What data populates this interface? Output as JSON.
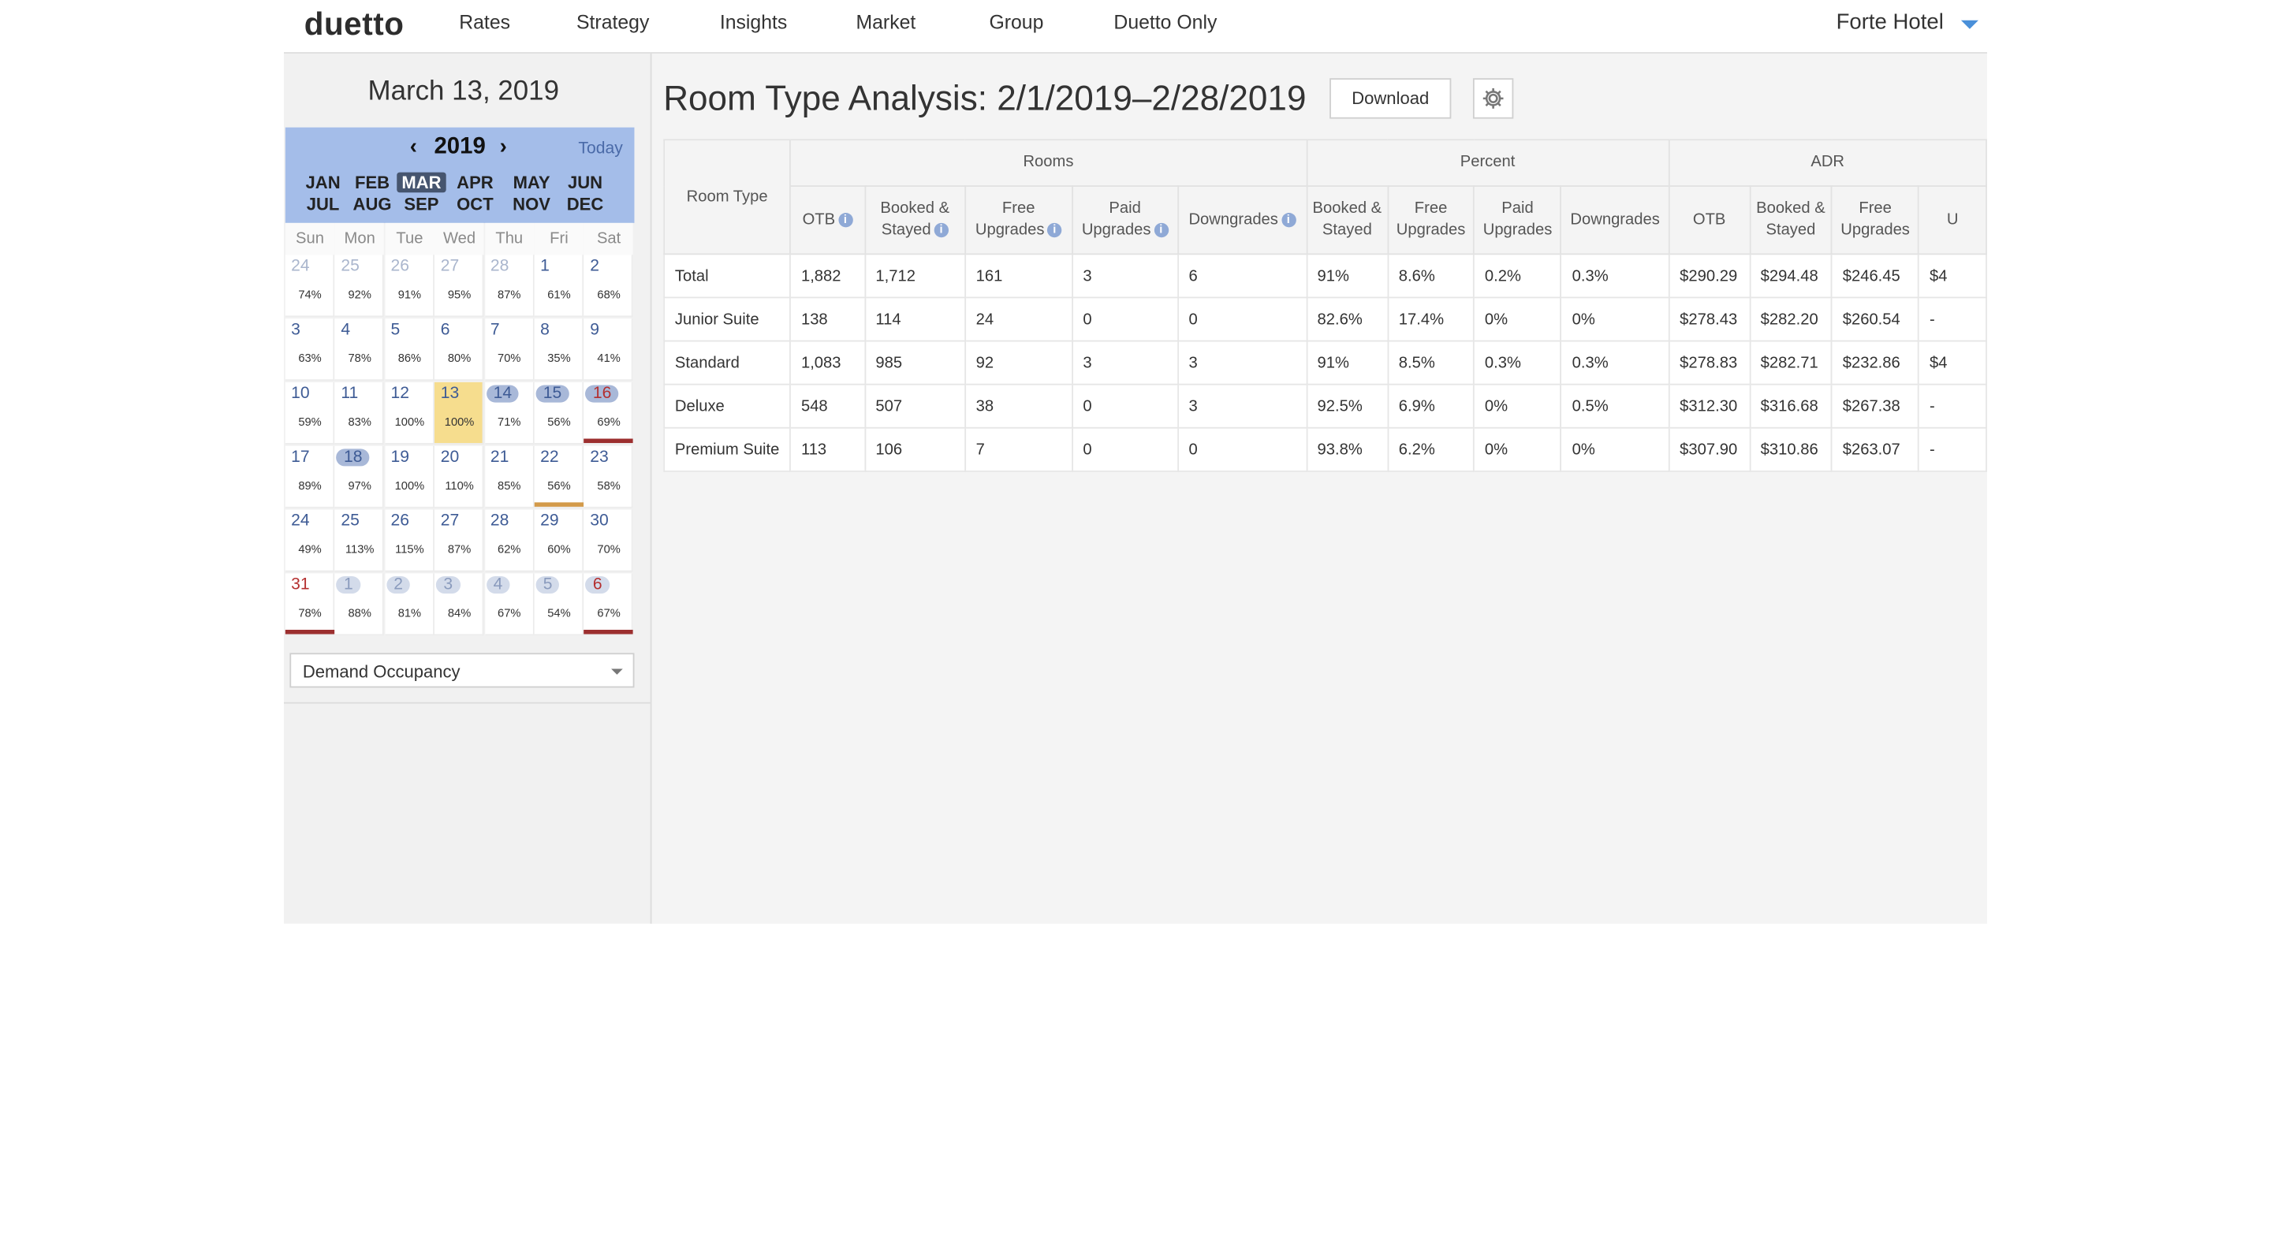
{
  "nav": {
    "logo": "duetto",
    "items": [
      "Rates",
      "Strategy",
      "Insights",
      "Market",
      "Group",
      "Duetto Only"
    ],
    "hotel": "Forte Hotel"
  },
  "sidebar": {
    "date": "March 13, 2019",
    "calendar": {
      "year": "2019",
      "prev_icon": "chevron-left-icon",
      "next_icon": "chevron-right-icon",
      "today_label": "Today",
      "months": [
        "JAN",
        "FEB",
        "MAR",
        "APR",
        "MAY",
        "JUN",
        "JUL",
        "AUG",
        "SEP",
        "OCT",
        "NOV",
        "DEC"
      ],
      "selected_month": "MAR",
      "weekdays": [
        "Sun",
        "Mon",
        "Tue",
        "Wed",
        "Thu",
        "Fri",
        "Sat"
      ],
      "weeks": [
        [
          {
            "d": "24",
            "p": "74%",
            "other": true
          },
          {
            "d": "25",
            "p": "92%",
            "other": true
          },
          {
            "d": "26",
            "p": "91%",
            "other": true
          },
          {
            "d": "27",
            "p": "95%",
            "other": true
          },
          {
            "d": "28",
            "p": "87%",
            "other": true
          },
          {
            "d": "1",
            "p": "61%"
          },
          {
            "d": "2",
            "p": "68%"
          }
        ],
        [
          {
            "d": "3",
            "p": "63%"
          },
          {
            "d": "4",
            "p": "78%"
          },
          {
            "d": "5",
            "p": "86%"
          },
          {
            "d": "6",
            "p": "80%"
          },
          {
            "d": "7",
            "p": "70%"
          },
          {
            "d": "8",
            "p": "35%"
          },
          {
            "d": "9",
            "p": "41%"
          }
        ],
        [
          {
            "d": "10",
            "p": "59%"
          },
          {
            "d": "11",
            "p": "83%"
          },
          {
            "d": "12",
            "p": "100%"
          },
          {
            "d": "13",
            "p": "100%",
            "today": true
          },
          {
            "d": "14",
            "p": "71%",
            "pill": true
          },
          {
            "d": "15",
            "p": "56%",
            "pill": true
          },
          {
            "d": "16",
            "p": "69%",
            "pill": true,
            "red": true,
            "bar": "red"
          }
        ],
        [
          {
            "d": "17",
            "p": "89%"
          },
          {
            "d": "18",
            "p": "97%",
            "pill": true
          },
          {
            "d": "19",
            "p": "100%"
          },
          {
            "d": "20",
            "p": "110%"
          },
          {
            "d": "21",
            "p": "85%"
          },
          {
            "d": "22",
            "p": "56%",
            "bar": "orange"
          },
          {
            "d": "23",
            "p": "58%"
          }
        ],
        [
          {
            "d": "24",
            "p": "49%"
          },
          {
            "d": "25",
            "p": "113%"
          },
          {
            "d": "26",
            "p": "115%"
          },
          {
            "d": "27",
            "p": "87%"
          },
          {
            "d": "28",
            "p": "62%"
          },
          {
            "d": "29",
            "p": "60%"
          },
          {
            "d": "30",
            "p": "70%"
          }
        ],
        [
          {
            "d": "31",
            "p": "78%",
            "red": true,
            "bar": "red"
          },
          {
            "d": "1",
            "p": "88%",
            "other": true,
            "pill_light": true
          },
          {
            "d": "2",
            "p": "81%",
            "other": true,
            "pill_light": true
          },
          {
            "d": "3",
            "p": "84%",
            "other": true,
            "pill_light": true
          },
          {
            "d": "4",
            "p": "67%",
            "other": true,
            "pill_light": true
          },
          {
            "d": "5",
            "p": "54%",
            "other": true,
            "pill_light": true
          },
          {
            "d": "6",
            "p": "67%",
            "other": true,
            "pill_light": true,
            "red": true,
            "bar": "red"
          }
        ]
      ]
    },
    "metric_select": "Demand Occupancy"
  },
  "main": {
    "title": "Room Type Analysis: 2/1/2019–2/28/2019",
    "download_label": "Download",
    "settings_icon": "gear-icon",
    "table": {
      "room_type_header": "Room Type",
      "groups": [
        {
          "label": "Rooms",
          "columns": [
            {
              "label": "OTB",
              "info": true
            },
            {
              "label": "Booked & Stayed",
              "info": true
            },
            {
              "label": "Free Upgrades",
              "info": true
            },
            {
              "label": "Paid Upgrades",
              "info": true
            },
            {
              "label": "Downgrades",
              "info": true
            }
          ]
        },
        {
          "label": "Percent",
          "columns": [
            {
              "label": "Booked & Stayed"
            },
            {
              "label": "Free Upgrades"
            },
            {
              "label": "Paid Upgrades"
            },
            {
              "label": "Downgrades"
            }
          ]
        },
        {
          "label": "ADR",
          "columns": [
            {
              "label": "OTB"
            },
            {
              "label": "Booked & Stayed"
            },
            {
              "label": "Free Upgrades"
            },
            {
              "label": "U"
            }
          ]
        }
      ],
      "rows": [
        {
          "type": "Total",
          "cells": [
            "1,882",
            "1,712",
            "161",
            "3",
            "6",
            "91%",
            "8.6%",
            "0.2%",
            "0.3%",
            "$290.29",
            "$294.48",
            "$246.45",
            "$4"
          ]
        },
        {
          "type": "Junior Suite",
          "cells": [
            "138",
            "114",
            "24",
            "0",
            "0",
            "82.6%",
            "17.4%",
            "0%",
            "0%",
            "$278.43",
            "$282.20",
            "$260.54",
            "-"
          ]
        },
        {
          "type": "Standard",
          "cells": [
            "1,083",
            "985",
            "92",
            "3",
            "3",
            "91%",
            "8.5%",
            "0.3%",
            "0.3%",
            "$278.83",
            "$282.71",
            "$232.86",
            "$4"
          ]
        },
        {
          "type": "Deluxe",
          "cells": [
            "548",
            "507",
            "38",
            "0",
            "3",
            "92.5%",
            "6.9%",
            "0%",
            "0.5%",
            "$312.30",
            "$316.68",
            "$267.38",
            "-"
          ]
        },
        {
          "type": "Premium Suite",
          "cells": [
            "113",
            "106",
            "7",
            "0",
            "0",
            "93.8%",
            "6.2%",
            "0%",
            "0%",
            "$307.90",
            "$310.86",
            "$263.07",
            "-"
          ]
        }
      ]
    }
  }
}
